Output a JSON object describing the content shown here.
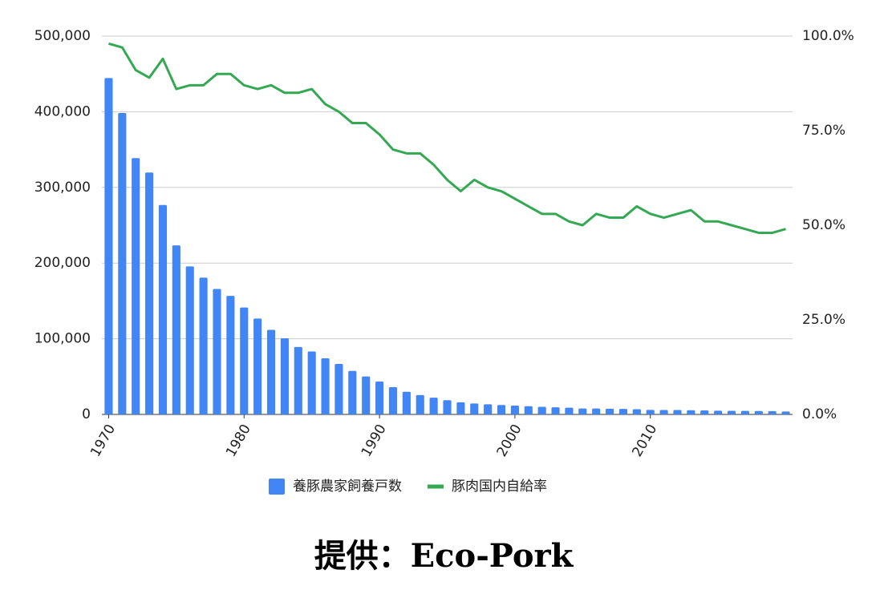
{
  "chart_data": {
    "type": "bar_line",
    "x": [
      1970,
      1971,
      1972,
      1973,
      1974,
      1975,
      1976,
      1977,
      1978,
      1979,
      1980,
      1981,
      1982,
      1983,
      1984,
      1985,
      1986,
      1987,
      1988,
      1989,
      1990,
      1991,
      1992,
      1993,
      1994,
      1995,
      1996,
      1997,
      1998,
      1999,
      2000,
      2001,
      2002,
      2003,
      2004,
      2005,
      2006,
      2007,
      2008,
      2009,
      2010,
      2011,
      2012,
      2013,
      2014,
      2015,
      2016,
      2017,
      2018,
      2019,
      2020
    ],
    "series": [
      {
        "name": "養豚農家飼養戸数",
        "type": "bar",
        "color": "#4285f4",
        "values": [
          444500,
          398300,
          338700,
          319600,
          276700,
          223400,
          195600,
          180700,
          165800,
          156600,
          141300,
          126700,
          111700,
          100600,
          89100,
          83100,
          74200,
          66700,
          57500,
          50200,
          43400,
          36000,
          29900,
          25500,
          22100,
          18800,
          16000,
          14400,
          13400,
          12500,
          11700,
          10800,
          10000,
          9430,
          8880,
          7800,
          7800,
          7550,
          7230,
          6890,
          6000,
          5840,
          5840,
          5570,
          5270,
          4950,
          4830,
          4670,
          4470,
          4320,
          3850
        ]
      },
      {
        "name": "豚肉国内自給率",
        "type": "line",
        "axis": "y2",
        "color": "#34a853",
        "values": [
          98,
          97,
          91,
          89,
          94,
          86,
          87,
          87,
          90,
          90,
          87,
          86,
          87,
          85,
          85,
          86,
          82,
          80,
          77,
          77,
          74,
          70,
          69,
          69,
          66,
          62,
          59,
          62,
          60,
          59,
          57,
          55,
          53,
          53,
          51,
          50,
          53,
          52,
          52,
          55,
          53,
          52,
          53,
          54,
          51,
          51,
          50,
          49,
          48,
          48,
          49
        ]
      }
    ],
    "xlim": [
      1969.5,
      2020.5
    ],
    "xticks": [
      1970,
      1980,
      1990,
      2000,
      2010
    ],
    "ylim": [
      0,
      500000
    ],
    "yticks": [
      0,
      {
        "value": 100000,
        "label": "100,000"
      },
      {
        "value": 200000,
        "label": "200,000"
      },
      {
        "value": 300000,
        "label": "300,000"
      },
      {
        "value": 400000,
        "label": "400,000"
      },
      {
        "value": 500000,
        "label": "500,000"
      }
    ],
    "y2lim": [
      0,
      100
    ],
    "y2ticks": [
      {
        "value": 0,
        "label": "0.0%"
      },
      {
        "value": 25,
        "label": "25.0%"
      },
      {
        "value": 50,
        "label": "50.0%"
      },
      {
        "value": 75,
        "label": "75.0%"
      },
      {
        "value": 100,
        "label": "100.0%"
      }
    ],
    "grid": true,
    "legend": "bottom"
  },
  "caption": "提供：Eco-Pork"
}
